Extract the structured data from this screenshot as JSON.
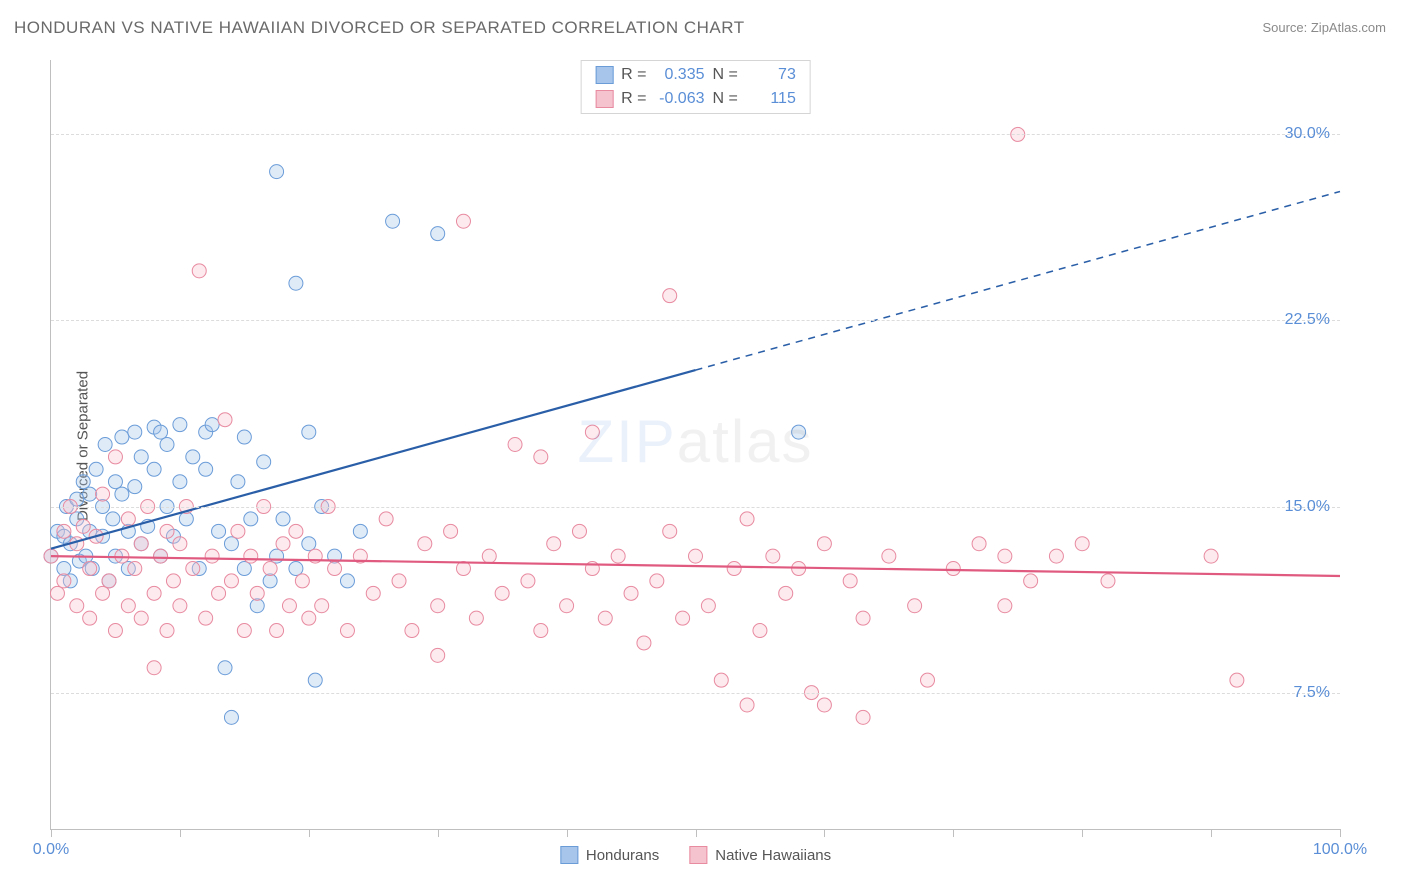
{
  "title": "HONDURAN VS NATIVE HAWAIIAN DIVORCED OR SEPARATED CORRELATION CHART",
  "source_label": "Source: ",
  "source_name": "ZipAtlas.com",
  "ylabel": "Divorced or Separated",
  "watermark": {
    "z": "ZIP",
    "rest": "atlas"
  },
  "chart": {
    "type": "scatter",
    "background_color": "#ffffff",
    "grid_color": "#dcdcdc",
    "axis_color": "#bfbfbf",
    "text_color": "#6a6a6a",
    "value_color": "#5a8ed6",
    "xlim": [
      0,
      100
    ],
    "ylim": [
      2,
      33
    ],
    "xticks": [
      0,
      10,
      20,
      30,
      40,
      50,
      60,
      70,
      80,
      90,
      100
    ],
    "xtick_labels": {
      "0": "0.0%",
      "100": "100.0%"
    },
    "yticks": [
      7.5,
      15.0,
      22.5,
      30.0
    ],
    "ytick_labels": [
      "7.5%",
      "15.0%",
      "22.5%",
      "30.0%"
    ],
    "marker_radius": 7,
    "marker_opacity": 0.35,
    "trend_line_width": 2.2,
    "series": [
      {
        "name": "Hondurans",
        "fill": "#a7c5ea",
        "stroke": "#6a9cd8",
        "stroke_strong": "#2a5fa8",
        "R": "0.335",
        "N": "73",
        "trend": {
          "x1": 0,
          "y1": 13.3,
          "x2": 50,
          "y2": 20.5,
          "solid_until_x": 50,
          "x3": 100,
          "y3": 27.7
        },
        "points": [
          [
            0,
            13.0
          ],
          [
            0.5,
            14.0
          ],
          [
            1,
            12.5
          ],
          [
            1,
            13.8
          ],
          [
            1.2,
            15.0
          ],
          [
            1.5,
            13.5
          ],
          [
            1.5,
            12.0
          ],
          [
            2,
            14.5
          ],
          [
            2,
            15.3
          ],
          [
            2.2,
            12.8
          ],
          [
            2.5,
            16.0
          ],
          [
            2.7,
            13.0
          ],
          [
            3,
            14.0
          ],
          [
            3,
            15.5
          ],
          [
            3.2,
            12.5
          ],
          [
            3.5,
            16.5
          ],
          [
            4,
            13.8
          ],
          [
            4,
            15.0
          ],
          [
            4.2,
            17.5
          ],
          [
            4.5,
            12.0
          ],
          [
            4.8,
            14.5
          ],
          [
            5,
            16.0
          ],
          [
            5,
            13.0
          ],
          [
            5.5,
            15.5
          ],
          [
            5.5,
            17.8
          ],
          [
            6,
            12.5
          ],
          [
            6,
            14.0
          ],
          [
            6.5,
            18.0
          ],
          [
            6.5,
            15.8
          ],
          [
            7,
            13.5
          ],
          [
            7,
            17.0
          ],
          [
            7.5,
            14.2
          ],
          [
            8,
            18.2
          ],
          [
            8,
            16.5
          ],
          [
            8.5,
            13.0
          ],
          [
            8.5,
            18.0
          ],
          [
            9,
            15.0
          ],
          [
            9,
            17.5
          ],
          [
            9.5,
            13.8
          ],
          [
            10,
            16.0
          ],
          [
            10,
            18.3
          ],
          [
            10.5,
            14.5
          ],
          [
            11,
            17.0
          ],
          [
            11.5,
            12.5
          ],
          [
            12,
            16.5
          ],
          [
            12,
            18.0
          ],
          [
            12.5,
            18.3
          ],
          [
            13,
            14.0
          ],
          [
            13.5,
            8.5
          ],
          [
            14,
            13.5
          ],
          [
            14.5,
            16.0
          ],
          [
            15,
            12.5
          ],
          [
            15,
            17.8
          ],
          [
            15.5,
            14.5
          ],
          [
            16,
            11.0
          ],
          [
            16.5,
            16.8
          ],
          [
            17,
            12.0
          ],
          [
            17.5,
            13.0
          ],
          [
            18,
            14.5
          ],
          [
            19,
            12.5
          ],
          [
            19,
            24.0
          ],
          [
            20,
            13.5
          ],
          [
            20.5,
            8.0
          ],
          [
            21,
            15.0
          ],
          [
            22,
            13.0
          ],
          [
            23,
            12.0
          ],
          [
            24,
            14.0
          ],
          [
            17.5,
            28.5
          ],
          [
            14,
            6.5
          ],
          [
            20,
            18.0
          ],
          [
            26.5,
            26.5
          ],
          [
            30,
            26.0
          ],
          [
            58,
            18.0
          ]
        ]
      },
      {
        "name": "Native Hawaiians",
        "fill": "#f5c3ce",
        "stroke": "#e88aa0",
        "stroke_strong": "#e05a80",
        "R": "-0.063",
        "N": "115",
        "trend": {
          "x1": 0,
          "y1": 13.0,
          "x2": 100,
          "y2": 12.2,
          "solid_until_x": 100
        },
        "points": [
          [
            0,
            13.0
          ],
          [
            0.5,
            11.5
          ],
          [
            1,
            14.0
          ],
          [
            1,
            12.0
          ],
          [
            1.5,
            15.0
          ],
          [
            2,
            11.0
          ],
          [
            2,
            13.5
          ],
          [
            2.5,
            14.2
          ],
          [
            3,
            12.5
          ],
          [
            3,
            10.5
          ],
          [
            3.5,
            13.8
          ],
          [
            4,
            15.5
          ],
          [
            4,
            11.5
          ],
          [
            4.5,
            12.0
          ],
          [
            5,
            17.0
          ],
          [
            5,
            10.0
          ],
          [
            5.5,
            13.0
          ],
          [
            6,
            14.5
          ],
          [
            6,
            11.0
          ],
          [
            6.5,
            12.5
          ],
          [
            7,
            13.5
          ],
          [
            7,
            10.5
          ],
          [
            7.5,
            15.0
          ],
          [
            8,
            11.5
          ],
          [
            8,
            8.5
          ],
          [
            8.5,
            13.0
          ],
          [
            9,
            14.0
          ],
          [
            9,
            10.0
          ],
          [
            9.5,
            12.0
          ],
          [
            10,
            13.5
          ],
          [
            10,
            11.0
          ],
          [
            10.5,
            15.0
          ],
          [
            11,
            12.5
          ],
          [
            11.5,
            24.5
          ],
          [
            12,
            10.5
          ],
          [
            12.5,
            13.0
          ],
          [
            13,
            11.5
          ],
          [
            13.5,
            18.5
          ],
          [
            14,
            12.0
          ],
          [
            14.5,
            14.0
          ],
          [
            15,
            10.0
          ],
          [
            15.5,
            13.0
          ],
          [
            16,
            11.5
          ],
          [
            16.5,
            15.0
          ],
          [
            17,
            12.5
          ],
          [
            17.5,
            10.0
          ],
          [
            18,
            13.5
          ],
          [
            18.5,
            11.0
          ],
          [
            19,
            14.0
          ],
          [
            19.5,
            12.0
          ],
          [
            20,
            10.5
          ],
          [
            20.5,
            13.0
          ],
          [
            21,
            11.0
          ],
          [
            21.5,
            15.0
          ],
          [
            22,
            12.5
          ],
          [
            23,
            10.0
          ],
          [
            24,
            13.0
          ],
          [
            25,
            11.5
          ],
          [
            26,
            14.5
          ],
          [
            27,
            12.0
          ],
          [
            28,
            10.0
          ],
          [
            29,
            13.5
          ],
          [
            30,
            11.0
          ],
          [
            30,
            9.0
          ],
          [
            31,
            14.0
          ],
          [
            32,
            12.5
          ],
          [
            32,
            26.5
          ],
          [
            33,
            10.5
          ],
          [
            34,
            13.0
          ],
          [
            35,
            11.5
          ],
          [
            36,
            17.5
          ],
          [
            37,
            12.0
          ],
          [
            38,
            10.0
          ],
          [
            38,
            17.0
          ],
          [
            39,
            13.5
          ],
          [
            40,
            11.0
          ],
          [
            41,
            14.0
          ],
          [
            42,
            12.5
          ],
          [
            42,
            18.0
          ],
          [
            43,
            10.5
          ],
          [
            44,
            13.0
          ],
          [
            45,
            11.5
          ],
          [
            46,
            9.5
          ],
          [
            47,
            12.0
          ],
          [
            48,
            14.0
          ],
          [
            48,
            23.5
          ],
          [
            49,
            10.5
          ],
          [
            50,
            13.0
          ],
          [
            51,
            11.0
          ],
          [
            52,
            8.0
          ],
          [
            53,
            12.5
          ],
          [
            54,
            14.5
          ],
          [
            54,
            7.0
          ],
          [
            55,
            10.0
          ],
          [
            56,
            13.0
          ],
          [
            57,
            11.5
          ],
          [
            58,
            12.5
          ],
          [
            59,
            7.5
          ],
          [
            60,
            13.5
          ],
          [
            60,
            7.0
          ],
          [
            62,
            12.0
          ],
          [
            63,
            10.5
          ],
          [
            63,
            6.5
          ],
          [
            65,
            13.0
          ],
          [
            67,
            11.0
          ],
          [
            68,
            8.0
          ],
          [
            70,
            12.5
          ],
          [
            72,
            13.5
          ],
          [
            74,
            11.0
          ],
          [
            74,
            13.0
          ],
          [
            76,
            12.0
          ],
          [
            78,
            13.0
          ],
          [
            80,
            13.5
          ],
          [
            82,
            12.0
          ],
          [
            75,
            30.0
          ],
          [
            92,
            8.0
          ],
          [
            90,
            13.0
          ]
        ]
      }
    ]
  },
  "legend_top_labels": {
    "R": "R =",
    "N": "N ="
  }
}
